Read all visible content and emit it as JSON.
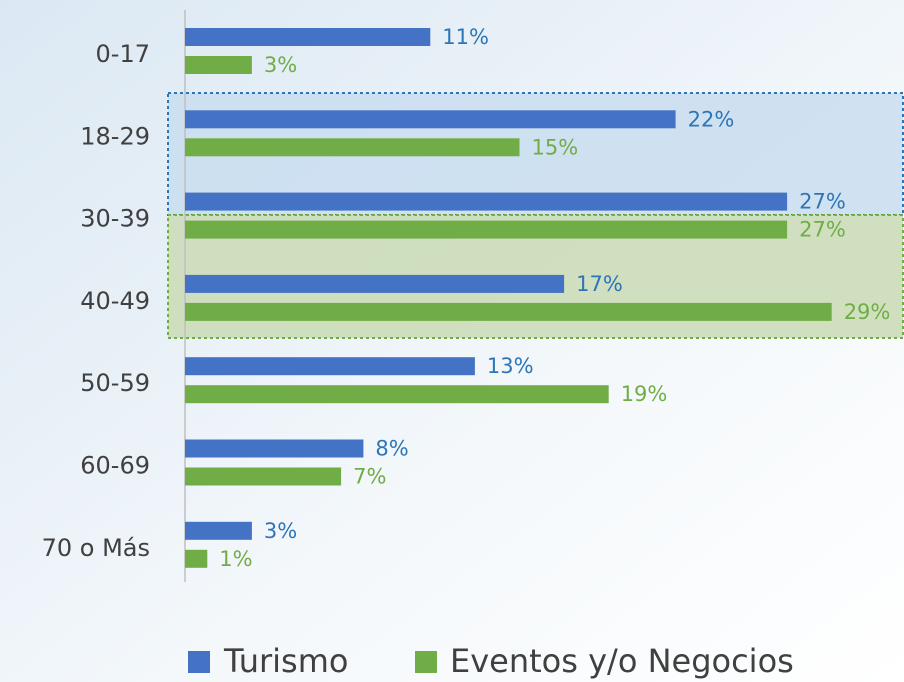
{
  "chart_data": {
    "type": "bar",
    "orientation": "horizontal",
    "categories": [
      "0-17",
      "18-29",
      "30-39",
      "40-49",
      "50-59",
      "60-69",
      "70 o Más"
    ],
    "series": [
      {
        "name": "Turismo",
        "color": "#4472c4",
        "label_color": "#2e75b6",
        "values": [
          11,
          22,
          27,
          17,
          13,
          8,
          3
        ],
        "value_labels": [
          "11%",
          "22%",
          "27%",
          "17%",
          "13%",
          "8%",
          "3%"
        ]
      },
      {
        "name": "Eventos y/o Negocios",
        "color": "#70ad47",
        "label_color": "#70ad47",
        "values": [
          3,
          15,
          27,
          29,
          19,
          7,
          1
        ],
        "value_labels": [
          "3%",
          "15%",
          "27%",
          "29%",
          "19%",
          "7%",
          "1%"
        ]
      }
    ]
  }
}
